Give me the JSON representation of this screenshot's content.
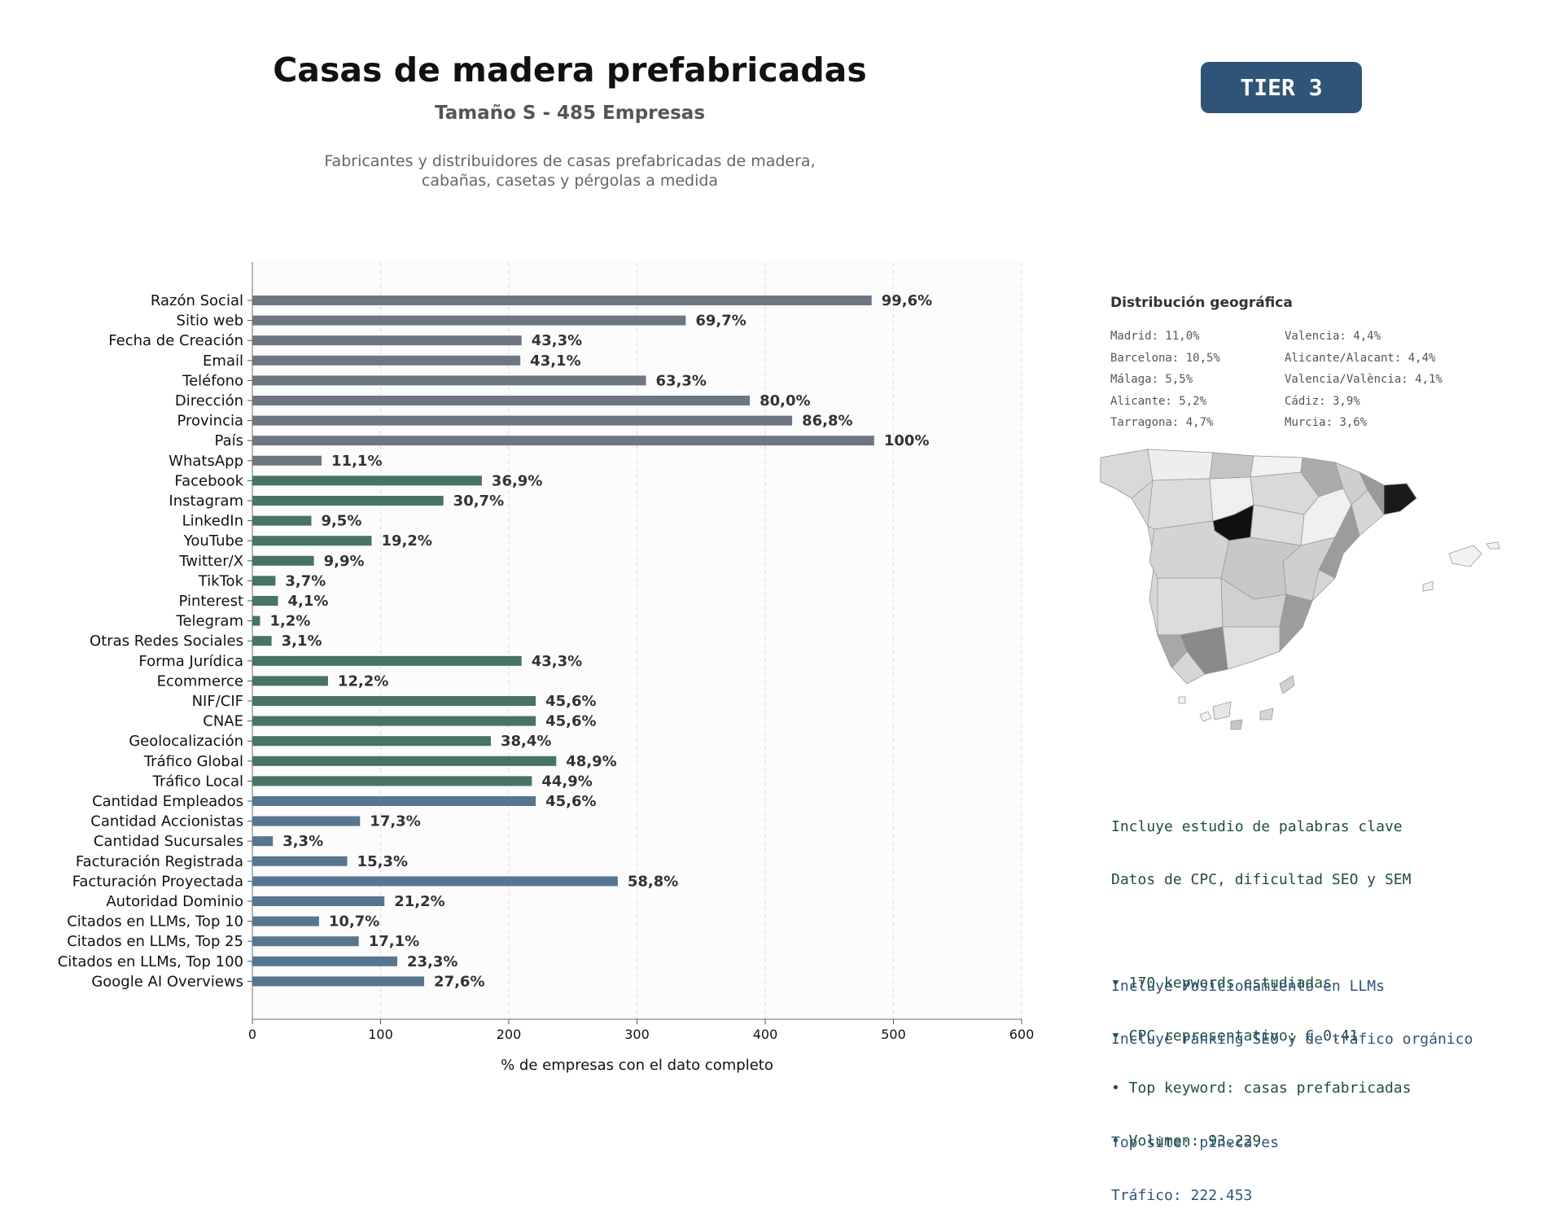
{
  "header": {
    "title": "Casas de madera prefabricadas",
    "subtitle": "Tamaño S - 485 Empresas",
    "description_line1": "Fabricantes y distribuidores de casas prefabricadas de madera,",
    "description_line2": "cabañas, casetas y pérgolas a medida",
    "tier_badge": "TIER 3"
  },
  "colors": {
    "grey_bar": "#6e7781",
    "green_bar": "#477463",
    "blue_bar": "#587590",
    "badge": "#2f5478"
  },
  "chart_data": {
    "type": "bar",
    "orientation": "horizontal",
    "xlabel": "% de empresas con el dato completo",
    "xlim": [
      0,
      600
    ],
    "xticks": [
      0,
      100,
      200,
      300,
      400,
      500,
      600
    ],
    "grid": "vertical dashed",
    "categories": [
      "Razón Social",
      "Sitio web",
      "Fecha de Creación",
      "Email",
      "Teléfono",
      "Dirección",
      "Provincia",
      "País",
      "WhatsApp",
      "Facebook",
      "Instagram",
      "LinkedIn",
      "YouTube",
      "Twitter/X",
      "TikTok",
      "Pinterest",
      "Telegram",
      "Otras Redes Sociales",
      "Forma Jurídica",
      "Ecommerce",
      "NIF/CIF",
      "CNAE",
      "Geolocalización",
      "Tráfico Global",
      "Tráfico Local",
      "Cantidad Empleados",
      "Cantidad Accionistas",
      "Cantidad Sucursales",
      "Facturación Registrada",
      "Facturación Proyectada",
      "Autoridad Dominio",
      "Citados en LLMs, Top 10",
      "Citados en LLMs, Top 25",
      "Citados en LLMs, Top 100",
      "Google AI Overviews"
    ],
    "values": [
      483,
      338,
      210,
      209,
      307,
      388,
      421,
      485,
      54,
      179,
      149,
      46,
      93,
      48,
      18,
      20,
      6,
      15,
      210,
      59,
      221,
      221,
      186,
      237,
      218,
      221,
      84,
      16,
      74,
      285,
      103,
      52,
      83,
      113,
      134
    ],
    "labels": [
      "99,6%",
      "69,7%",
      "43,3%",
      "43,1%",
      "63,3%",
      "80,0%",
      "86,8%",
      "100%",
      "11,1%",
      "36,9%",
      "30,7%",
      "9,5%",
      "19,2%",
      "9,9%",
      "3,7%",
      "4,1%",
      "1,2%",
      "3,1%",
      "43,3%",
      "12,2%",
      "45,6%",
      "45,6%",
      "38,4%",
      "48,9%",
      "44,9%",
      "45,6%",
      "17,3%",
      "3,3%",
      "15,3%",
      "58,8%",
      "21,2%",
      "10,7%",
      "17,1%",
      "23,3%",
      "27,6%"
    ],
    "color_groups": [
      "grey",
      "grey",
      "grey",
      "grey",
      "grey",
      "grey",
      "grey",
      "grey",
      "grey",
      "green",
      "green",
      "green",
      "green",
      "green",
      "green",
      "green",
      "green",
      "green",
      "green",
      "green",
      "green",
      "green",
      "green",
      "green",
      "green",
      "blue",
      "blue",
      "blue",
      "blue",
      "blue",
      "blue",
      "blue",
      "blue",
      "blue",
      "blue"
    ]
  },
  "geo": {
    "title": "Distribución geográfica",
    "items": [
      "Madrid: 11,0%",
      "Valencia: 4,4%",
      "Barcelona: 10,5%",
      "Alicante/Alacant: 4,4%",
      "Málaga: 5,5%",
      "Valencia/València: 4,1%",
      "Alicante: 5,2%",
      "Cádiz: 3,9%",
      "Tarragona: 4,7%",
      "Murcia: 3,6%"
    ]
  },
  "keywords": {
    "line1": "Incluye estudio de palabras clave",
    "line2": "Datos de CPC, dificultad SEO y SEM",
    "bullet1": "• 170 keywords estudiadas",
    "bullet2": "• CPC representativo: € 0.41",
    "bullet3": "• Top keyword: casas prefabricadas",
    "bullet4": "• Volumen: 93.229"
  },
  "llm": {
    "line1": "Incluye Posicionamiento en LLMs",
    "line2": "Incluye ranking SEO y de tráfico orgánico",
    "top_site": "Top site: pineca.es",
    "traffic": "Tráfico: 222.453"
  }
}
